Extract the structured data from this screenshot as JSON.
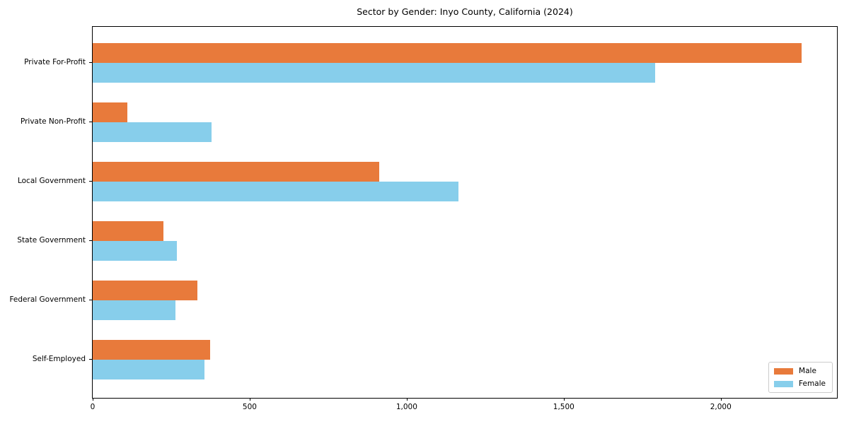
{
  "title": "Sector by Gender: Inyo County, California (2024)",
  "colors": {
    "male": "#e87a3b",
    "female": "#87ceeb",
    "axis": "#000000",
    "legend_border": "#cccccc",
    "background": "#ffffff"
  },
  "chart_data": {
    "type": "bar",
    "orientation": "horizontal",
    "title": "Sector by Gender: Inyo County, California (2024)",
    "xlabel": "",
    "ylabel": "",
    "categories": [
      "Private For-Profit",
      "Private Non-Profit",
      "Local Government",
      "State Government",
      "Federal Government",
      "Self-Employed"
    ],
    "series": [
      {
        "name": "Male",
        "color": "#e87a3b",
        "values": [
          2258,
          110,
          912,
          225,
          333,
          373
        ]
      },
      {
        "name": "Female",
        "color": "#87ceeb",
        "values": [
          1790,
          378,
          1164,
          268,
          263,
          355
        ]
      }
    ],
    "xlim": [
      0,
      2370
    ],
    "xticks": [
      0,
      500,
      1000,
      1500,
      2000
    ],
    "xtick_labels": [
      "0",
      "500",
      "1,000",
      "1,500",
      "2,000"
    ],
    "grid": false,
    "legend_position": "lower right",
    "legend_entries": [
      "Male",
      "Female"
    ]
  }
}
